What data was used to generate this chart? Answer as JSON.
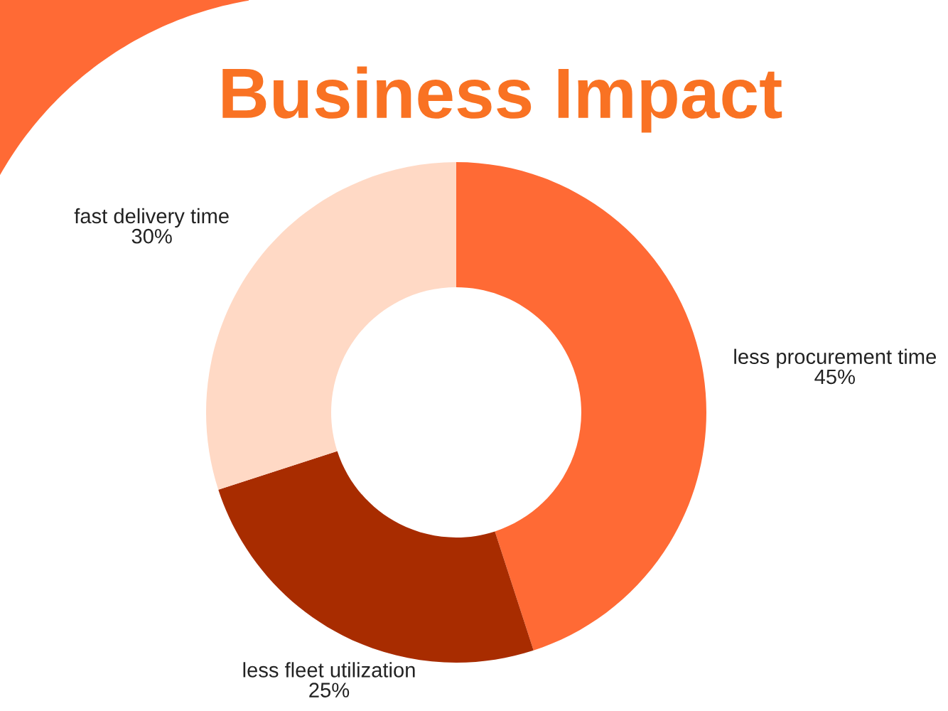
{
  "chart_data": {
    "type": "donut",
    "title": "Business Impact",
    "categories": [
      "less procurement time",
      "less fleet utilization",
      "fast delivery time"
    ],
    "values": [
      45,
      25,
      30
    ],
    "value_labels": [
      "45%",
      "25%",
      "30%"
    ],
    "colors": [
      "#ff6a35",
      "#a82c00",
      "#ffd9c5"
    ]
  }
}
